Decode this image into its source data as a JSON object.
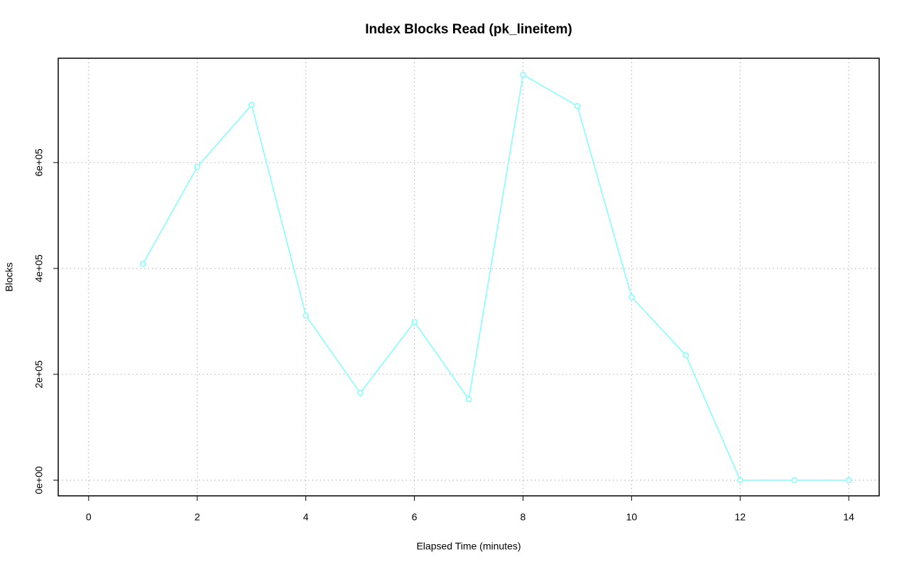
{
  "chart_data": {
    "type": "line",
    "title": "Index Blocks Read (pk_lineitem)",
    "x_label": "Elapsed Time (minutes)",
    "y_label": "Blocks",
    "x": [
      1,
      2,
      3,
      4,
      5,
      6,
      7,
      8,
      9,
      10,
      11,
      12,
      13,
      14
    ],
    "series": [
      {
        "name": "pk_lineitem",
        "color": "#80ffff",
        "values": [
          409000,
          592000,
          709000,
          311000,
          165000,
          299000,
          153000,
          766000,
          707000,
          346000,
          236000,
          0,
          0,
          0
        ]
      }
    ],
    "xlim": [
      -0.56,
      14.56
    ],
    "xticks": [
      0,
      2,
      4,
      6,
      8,
      10,
      12,
      14
    ],
    "ylim": [
      -29500,
      797000
    ],
    "yticks": [
      {
        "value": 0,
        "label": "0e+00"
      },
      {
        "value": 200000,
        "label": "2e+05"
      },
      {
        "value": 400000,
        "label": "4e+05"
      },
      {
        "value": 600000,
        "label": "6e+05"
      }
    ],
    "grid": true
  }
}
